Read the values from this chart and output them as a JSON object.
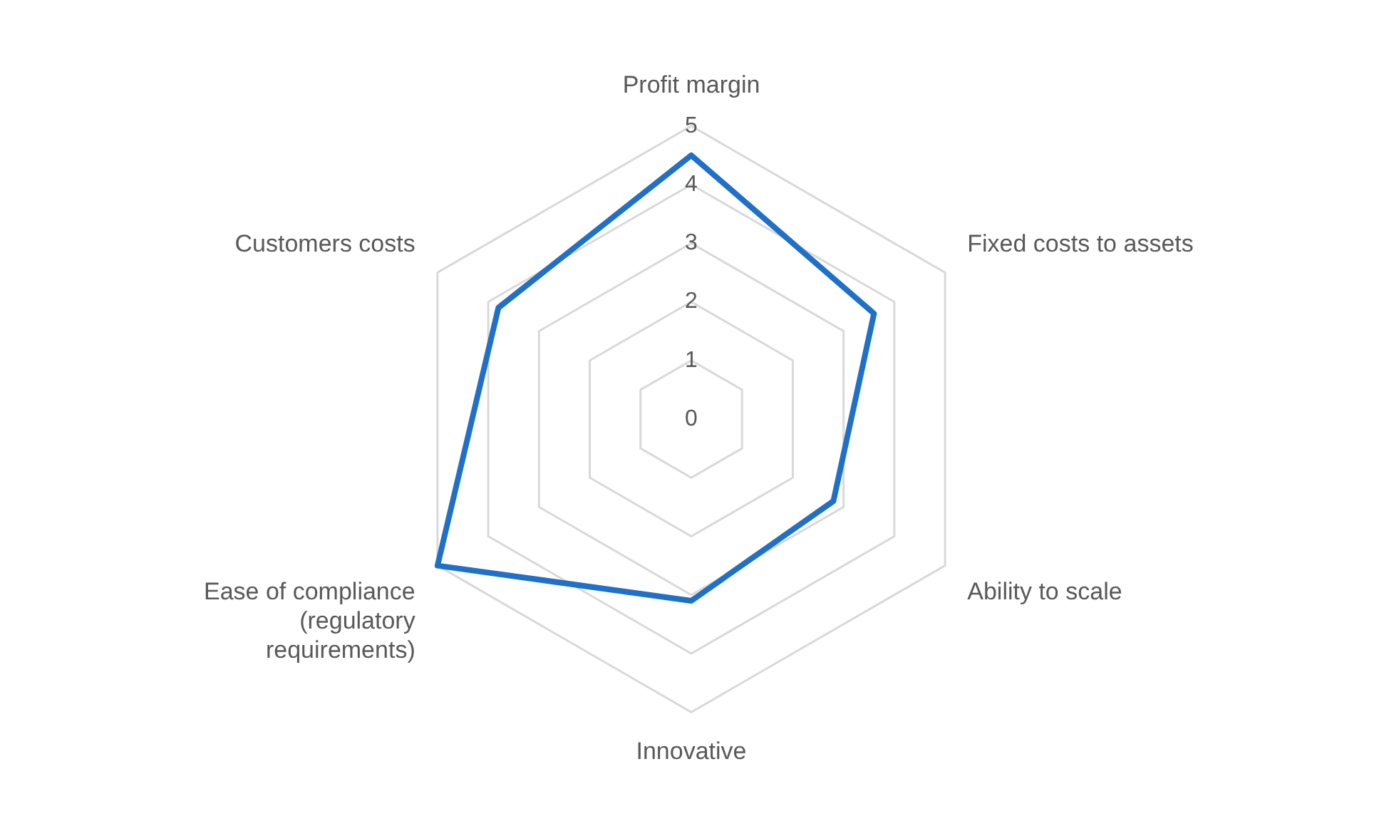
{
  "chart_data": {
    "type": "radar",
    "categories": [
      "Profit margin",
      "Fixed costs to assets",
      "Ability to scale",
      "Innovative",
      "Ease of compliance (regulatory requirements)",
      "Customers costs"
    ],
    "series": [
      {
        "color": "#1f70c8",
        "values": [
          4.5,
          3.6,
          2.8,
          3.1,
          5,
          3.8
        ]
      }
    ],
    "ylim": [
      0,
      5
    ],
    "yticks": [
      0,
      1,
      2,
      3,
      4,
      5
    ],
    "grid": true,
    "legend": false,
    "marker": "none",
    "line_style": "solid"
  }
}
